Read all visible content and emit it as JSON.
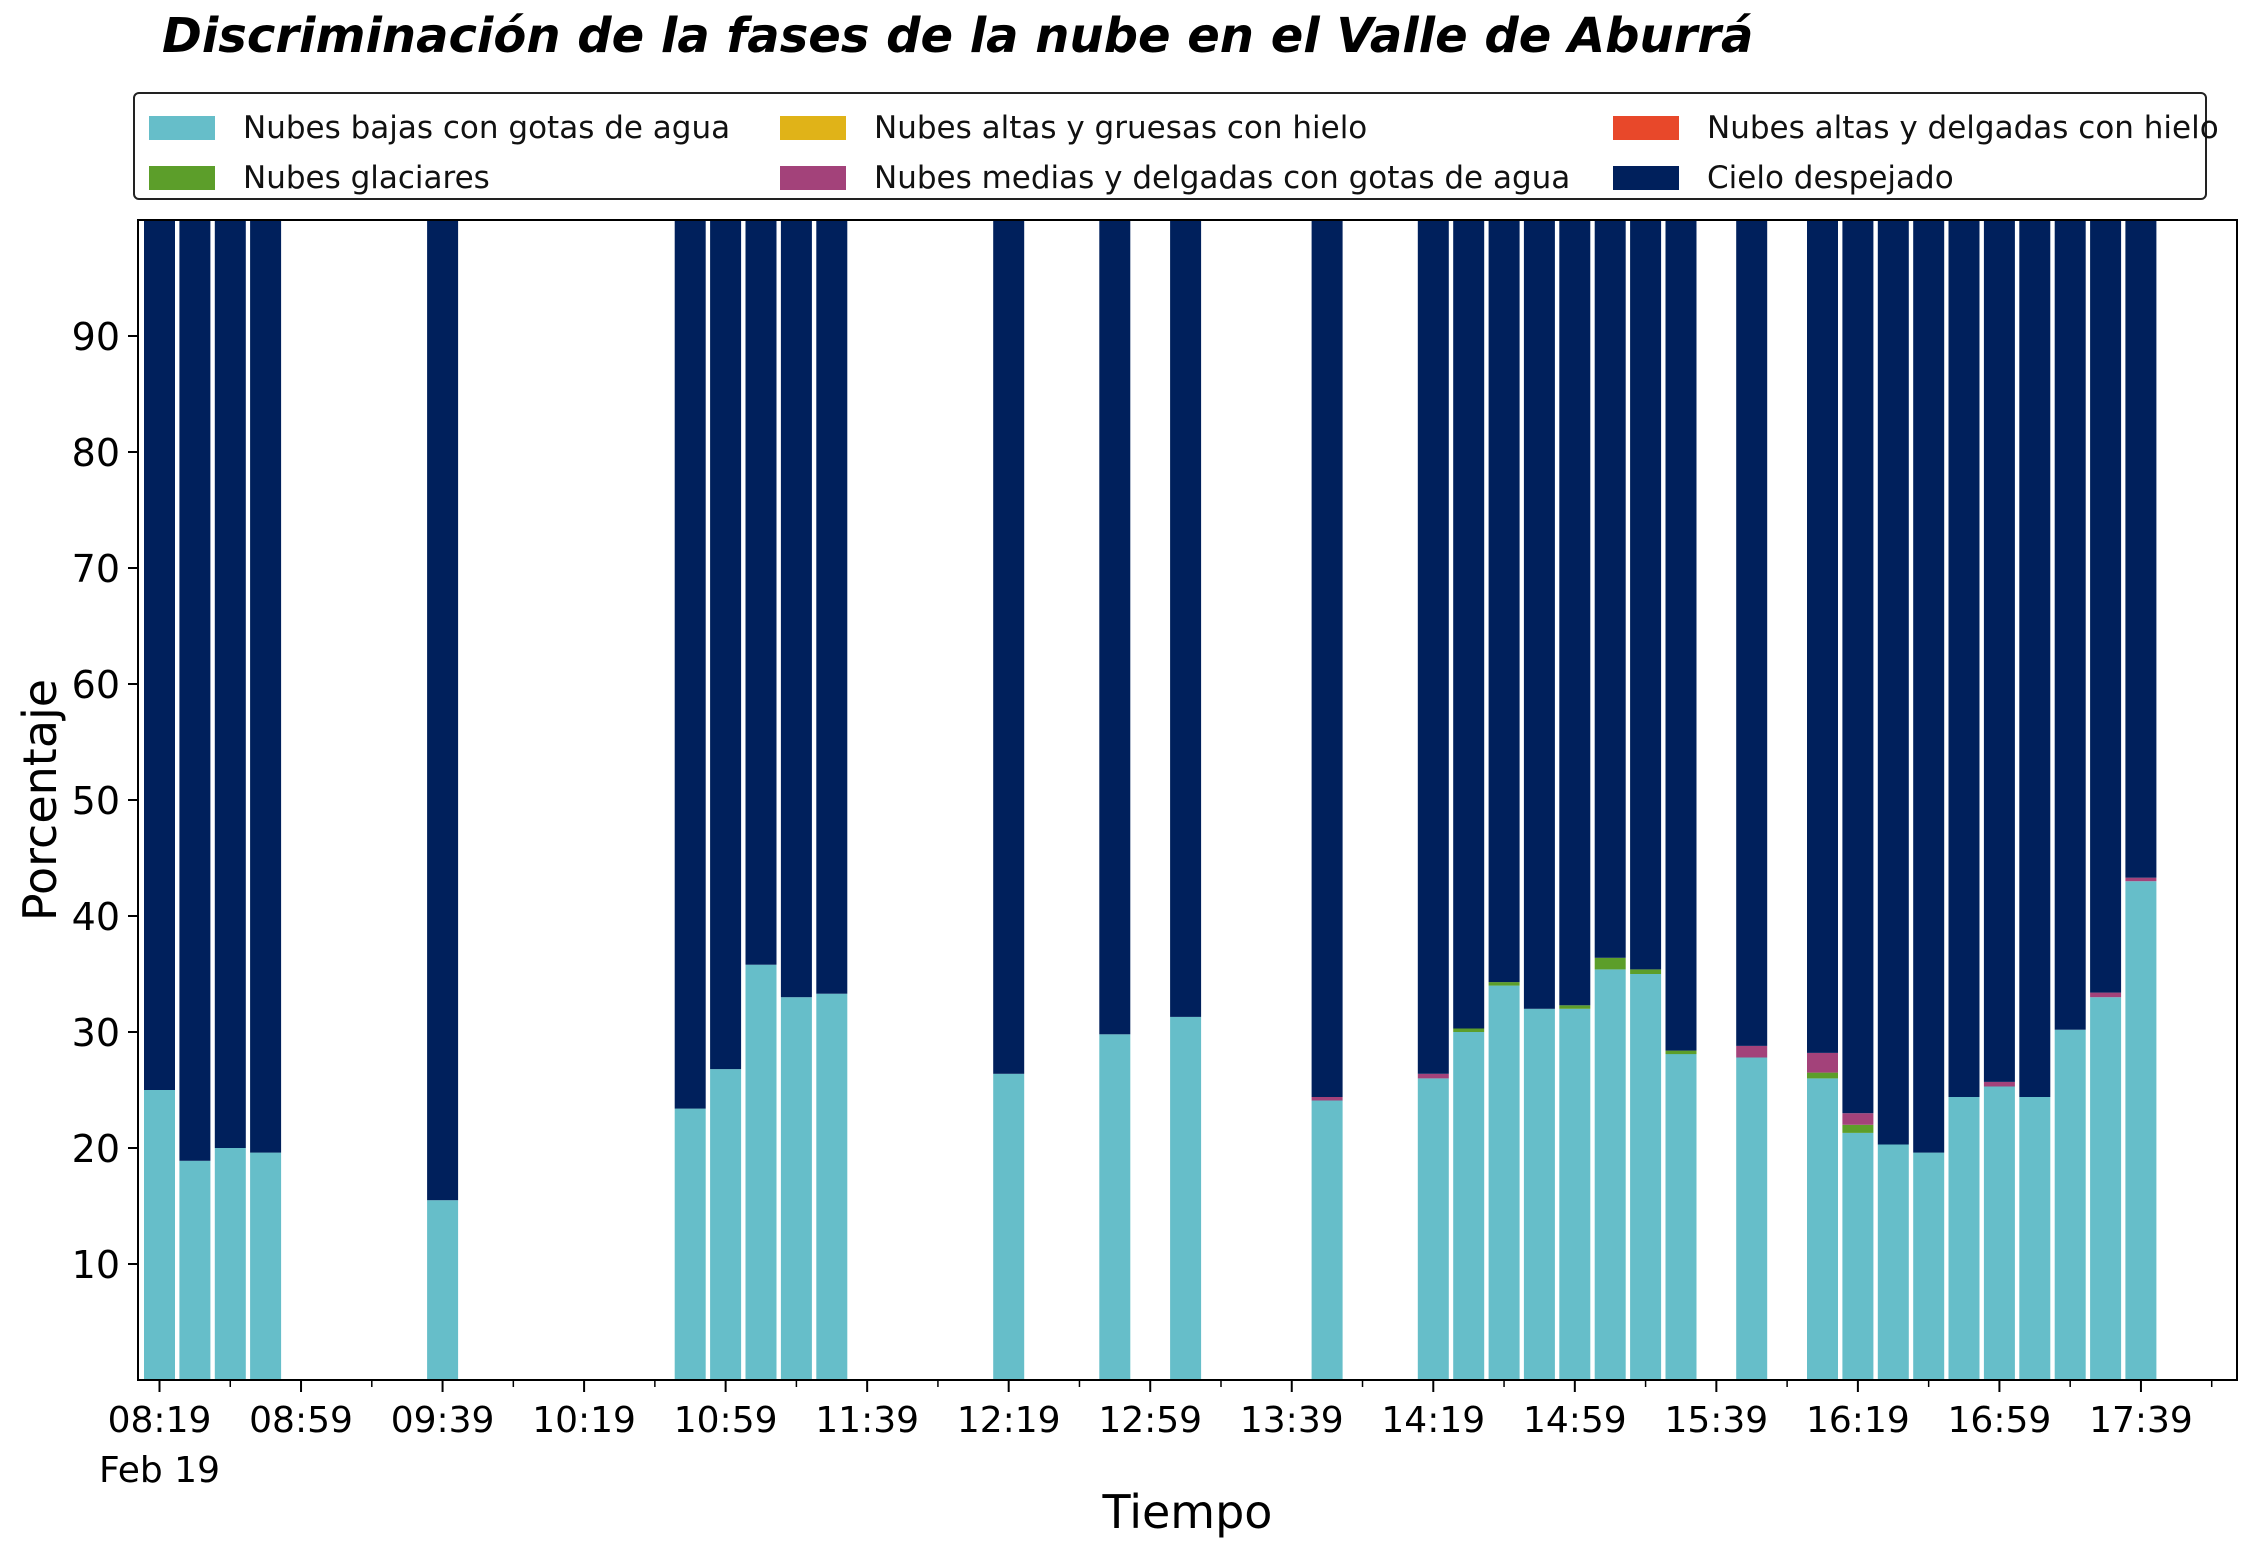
{
  "chart_data": {
    "type": "bar",
    "stacked": true,
    "title": "Discriminación de la fases de la nube en el Valle de Aburrá",
    "xlabel": "Tiempo",
    "ylabel": "Porcentaje",
    "ylim": [
      0,
      100
    ],
    "y_ticks": [
      10,
      20,
      30,
      40,
      50,
      60,
      70,
      80,
      90
    ],
    "x_tick_labels": [
      "08:19",
      "08:59",
      "09:39",
      "10:19",
      "10:59",
      "11:39",
      "12:19",
      "12:59",
      "13:39",
      "14:19",
      "14:59",
      "15:39",
      "16:19",
      "16:59",
      "17:39"
    ],
    "x_date_label": "Feb 19",
    "grid": false,
    "legend_position": "top",
    "x": [
      "08:19",
      "08:29",
      "08:39",
      "08:49",
      "09:39",
      "10:49",
      "10:59",
      "11:09",
      "11:19",
      "11:29",
      "12:19",
      "12:49",
      "13:09",
      "13:49",
      "14:19",
      "14:29",
      "14:39",
      "14:49",
      "14:59",
      "15:09",
      "15:19",
      "15:29",
      "15:49",
      "16:09",
      "16:19",
      "16:29",
      "16:39",
      "16:49",
      "16:59",
      "17:09",
      "17:19",
      "17:29",
      "17:39"
    ],
    "series": [
      {
        "name": "Nubes bajas con gotas de agua",
        "color": "#66bec9",
        "values": [
          25.0,
          18.9,
          20.0,
          19.6,
          15.5,
          23.4,
          26.8,
          35.8,
          33.0,
          33.3,
          26.4,
          29.8,
          31.3,
          24.1,
          26.0,
          30.0,
          34.0,
          32.0,
          32.0,
          35.4,
          35.0,
          28.1,
          27.8,
          26.0,
          21.3,
          20.3,
          19.6,
          24.4,
          25.3,
          24.4,
          30.2,
          33.0,
          43.0
        ]
      },
      {
        "name": "Nubes glaciares",
        "color": "#5c9e2a",
        "values": [
          0,
          0,
          0,
          0,
          0,
          0,
          0,
          0,
          0,
          0,
          0,
          0,
          0,
          0,
          0,
          0.3,
          0.3,
          0,
          0.3,
          1.0,
          0.4,
          0.3,
          0,
          0.5,
          0.7,
          0,
          0,
          0,
          0,
          0,
          0,
          0,
          0
        ]
      },
      {
        "name": "Nubes altas y gruesas con hielo",
        "color": "#e0b318",
        "values": [
          0,
          0,
          0,
          0,
          0,
          0,
          0,
          0,
          0,
          0,
          0,
          0,
          0,
          0,
          0,
          0,
          0,
          0,
          0,
          0,
          0,
          0,
          0,
          0,
          0,
          0,
          0,
          0,
          0,
          0,
          0,
          0,
          0
        ]
      },
      {
        "name": "Nubes medias y delgadas con gotas de agua",
        "color": "#a3427a",
        "values": [
          0,
          0,
          0,
          0,
          0,
          0,
          0,
          0,
          0,
          0,
          0,
          0,
          0,
          0.3,
          0.4,
          0,
          0,
          0,
          0,
          0,
          0,
          0,
          1.0,
          1.7,
          1.0,
          0,
          0,
          0,
          0.4,
          0,
          0,
          0.4,
          0.3
        ]
      },
      {
        "name": "Nubes altas y delgadas con hielo",
        "color": "#e8482a",
        "values": [
          0,
          0,
          0,
          0,
          0,
          0,
          0,
          0,
          0,
          0,
          0,
          0,
          0,
          0,
          0,
          0,
          0,
          0,
          0,
          0,
          0,
          0,
          0,
          0,
          0,
          0,
          0,
          0,
          0,
          0,
          0,
          0,
          0
        ]
      },
      {
        "name": "Cielo despejado",
        "color": "#00205c",
        "values": [
          75.0,
          81.1,
          80.0,
          80.4,
          84.5,
          76.6,
          73.2,
          64.2,
          67.0,
          66.7,
          73.6,
          70.2,
          68.7,
          75.6,
          73.6,
          69.7,
          65.7,
          68.0,
          67.7,
          63.6,
          64.6,
          71.6,
          71.2,
          71.8,
          77.0,
          79.7,
          80.4,
          75.6,
          74.3,
          75.6,
          69.8,
          66.6,
          56.7
        ]
      }
    ]
  }
}
